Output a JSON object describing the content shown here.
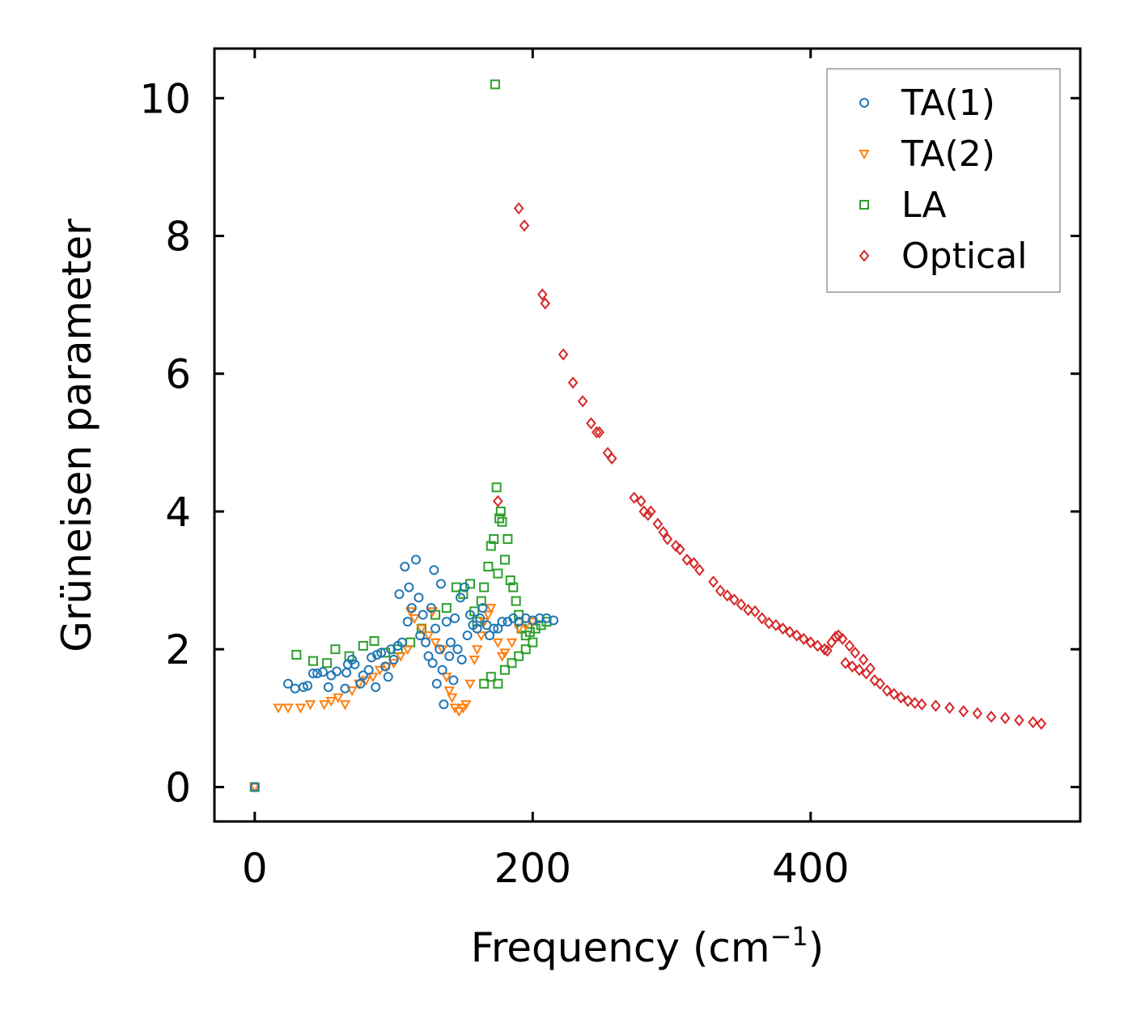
{
  "chart_data": {
    "type": "scatter",
    "xlabel": "Frequency (cm",
    "xlabel_sup": "−1",
    "xlabel_end": ")",
    "ylabel": "Grüneisen parameter",
    "xlim": [
      -29,
      594
    ],
    "ylim": [
      -0.5,
      10.72
    ],
    "xticks": [
      0,
      200,
      400
    ],
    "yticks": [
      0,
      2,
      4,
      6,
      8,
      10
    ],
    "legend_position": "top-right",
    "series": [
      {
        "name": "TA(1)",
        "marker": "circle",
        "color": "#1f77b4",
        "points": [
          [
            0,
            0
          ],
          [
            24,
            1.5
          ],
          [
            29,
            1.43
          ],
          [
            35,
            1.45
          ],
          [
            38,
            1.47
          ],
          [
            42,
            1.65
          ],
          [
            45,
            1.65
          ],
          [
            49,
            1.67
          ],
          [
            53,
            1.45
          ],
          [
            55,
            1.62
          ],
          [
            59,
            1.68
          ],
          [
            65,
            1.43
          ],
          [
            66,
            1.66
          ],
          [
            67,
            1.78
          ],
          [
            70,
            1.85
          ],
          [
            72,
            1.78
          ],
          [
            76,
            1.5
          ],
          [
            78,
            1.62
          ],
          [
            82,
            1.7
          ],
          [
            84,
            1.88
          ],
          [
            87,
            1.45
          ],
          [
            88,
            1.92
          ],
          [
            91,
            1.95
          ],
          [
            94,
            1.75
          ],
          [
            96,
            1.6
          ],
          [
            98,
            2.0
          ],
          [
            100,
            1.85
          ],
          [
            103,
            2.05
          ],
          [
            104,
            2.8
          ],
          [
            106,
            2.1
          ],
          [
            108,
            3.2
          ],
          [
            110,
            2.4
          ],
          [
            111,
            2.9
          ],
          [
            113,
            2.6
          ],
          [
            116,
            3.3
          ],
          [
            118,
            2.75
          ],
          [
            119,
            2.2
          ],
          [
            121,
            2.5
          ],
          [
            123,
            2.1
          ],
          [
            125,
            1.9
          ],
          [
            127,
            2.6
          ],
          [
            128,
            1.8
          ],
          [
            129,
            3.15
          ],
          [
            130,
            2.3
          ],
          [
            131,
            1.5
          ],
          [
            133,
            2.0
          ],
          [
            134,
            2.95
          ],
          [
            135,
            1.7
          ],
          [
            136,
            1.2
          ],
          [
            138,
            2.4
          ],
          [
            140,
            1.9
          ],
          [
            141,
            2.1
          ],
          [
            143,
            1.55
          ],
          [
            144,
            2.45
          ],
          [
            146,
            2.0
          ],
          [
            148,
            2.75
          ],
          [
            149,
            1.85
          ],
          [
            151,
            2.9
          ],
          [
            153,
            2.2
          ],
          [
            155,
            2.5
          ],
          [
            157,
            2.35
          ],
          [
            160,
            2.3
          ],
          [
            162,
            2.45
          ],
          [
            164,
            2.6
          ],
          [
            167,
            2.35
          ],
          [
            169,
            2.2
          ],
          [
            172,
            2.3
          ],
          [
            175,
            2.3
          ],
          [
            178,
            2.4
          ],
          [
            182,
            2.4
          ],
          [
            186,
            2.45
          ],
          [
            190,
            2.4
          ],
          [
            195,
            2.45
          ],
          [
            200,
            2.42
          ],
          [
            205,
            2.45
          ],
          [
            210,
            2.45
          ],
          [
            215,
            2.42
          ]
        ]
      },
      {
        "name": "TA(2)",
        "marker": "triangle-down",
        "color": "#ff7f0e",
        "points": [
          [
            0,
            0
          ],
          [
            17,
            1.15
          ],
          [
            24,
            1.15
          ],
          [
            33,
            1.15
          ],
          [
            40,
            1.2
          ],
          [
            50,
            1.2
          ],
          [
            55,
            1.25
          ],
          [
            60,
            1.3
          ],
          [
            65,
            1.2
          ],
          [
            70,
            1.4
          ],
          [
            75,
            1.5
          ],
          [
            80,
            1.55
          ],
          [
            85,
            1.6
          ],
          [
            90,
            1.7
          ],
          [
            95,
            1.75
          ],
          [
            100,
            1.8
          ],
          [
            105,
            1.9
          ],
          [
            110,
            2.0
          ],
          [
            112,
            2.55
          ],
          [
            115,
            2.45
          ],
          [
            120,
            2.3
          ],
          [
            125,
            2.2
          ],
          [
            128,
            2.55
          ],
          [
            130,
            2.1
          ],
          [
            135,
            2.0
          ],
          [
            138,
            1.6
          ],
          [
            140,
            1.4
          ],
          [
            142,
            1.3
          ],
          [
            144,
            1.15
          ],
          [
            147,
            1.1
          ],
          [
            150,
            1.15
          ],
          [
            152,
            1.2
          ],
          [
            155,
            1.5
          ],
          [
            158,
            1.85
          ],
          [
            160,
            2.0
          ],
          [
            163,
            2.2
          ],
          [
            165,
            2.4
          ],
          [
            168,
            2.5
          ],
          [
            170,
            2.6
          ],
          [
            175,
            2.1
          ],
          [
            178,
            1.9
          ],
          [
            180,
            1.95
          ],
          [
            185,
            2.1
          ],
          [
            190,
            2.3
          ],
          [
            195,
            2.35
          ],
          [
            200,
            2.4
          ]
        ]
      },
      {
        "name": "LA",
        "marker": "square",
        "color": "#2ca02c",
        "points": [
          [
            0,
            0
          ],
          [
            30,
            1.92
          ],
          [
            42,
            1.83
          ],
          [
            52,
            1.8
          ],
          [
            58,
            2.0
          ],
          [
            68,
            1.9
          ],
          [
            78,
            2.05
          ],
          [
            86,
            2.12
          ],
          [
            94,
            1.95
          ],
          [
            103,
            2.0
          ],
          [
            112,
            2.1
          ],
          [
            120,
            2.3
          ],
          [
            130,
            2.5
          ],
          [
            138,
            2.6
          ],
          [
            145,
            2.9
          ],
          [
            150,
            2.8
          ],
          [
            155,
            2.95
          ],
          [
            158,
            2.55
          ],
          [
            160,
            2.4
          ],
          [
            163,
            2.7
          ],
          [
            165,
            2.9
          ],
          [
            168,
            3.2
          ],
          [
            170,
            3.5
          ],
          [
            172,
            3.6
          ],
          [
            173,
            10.2
          ],
          [
            174,
            4.35
          ],
          [
            175,
            3.1
          ],
          [
            176,
            3.9
          ],
          [
            177,
            4.0
          ],
          [
            178,
            3.85
          ],
          [
            180,
            3.3
          ],
          [
            182,
            3.6
          ],
          [
            184,
            3.0
          ],
          [
            186,
            2.9
          ],
          [
            188,
            2.7
          ],
          [
            190,
            2.5
          ],
          [
            192,
            2.3
          ],
          [
            195,
            2.2
          ],
          [
            198,
            2.25
          ],
          [
            202,
            2.3
          ],
          [
            206,
            2.35
          ],
          [
            210,
            2.4
          ],
          [
            165,
            1.5
          ],
          [
            170,
            1.6
          ],
          [
            175,
            1.5
          ],
          [
            180,
            1.7
          ],
          [
            185,
            1.8
          ],
          [
            190,
            1.9
          ],
          [
            195,
            2.0
          ],
          [
            200,
            2.1
          ]
        ]
      },
      {
        "name": "Optical",
        "marker": "diamond",
        "color": "#d62728",
        "points": [
          [
            175,
            4.15
          ],
          [
            190,
            8.4
          ],
          [
            194,
            8.15
          ],
          [
            207,
            7.15
          ],
          [
            209,
            7.02
          ],
          [
            222,
            6.28
          ],
          [
            229,
            5.87
          ],
          [
            236,
            5.6
          ],
          [
            242,
            5.28
          ],
          [
            246,
            5.15
          ],
          [
            248,
            5.15
          ],
          [
            254,
            4.85
          ],
          [
            257,
            4.77
          ],
          [
            273,
            4.2
          ],
          [
            278,
            4.15
          ],
          [
            280,
            4.0
          ],
          [
            283,
            3.95
          ],
          [
            285,
            4.0
          ],
          [
            290,
            3.82
          ],
          [
            294,
            3.7
          ],
          [
            297,
            3.6
          ],
          [
            303,
            3.5
          ],
          [
            306,
            3.45
          ],
          [
            311,
            3.3
          ],
          [
            316,
            3.25
          ],
          [
            320,
            3.15
          ],
          [
            330,
            2.98
          ],
          [
            335,
            2.85
          ],
          [
            340,
            2.78
          ],
          [
            345,
            2.72
          ],
          [
            350,
            2.65
          ],
          [
            355,
            2.57
          ],
          [
            360,
            2.55
          ],
          [
            365,
            2.45
          ],
          [
            370,
            2.38
          ],
          [
            375,
            2.35
          ],
          [
            380,
            2.3
          ],
          [
            385,
            2.25
          ],
          [
            390,
            2.2
          ],
          [
            395,
            2.15
          ],
          [
            400,
            2.1
          ],
          [
            405,
            2.05
          ],
          [
            410,
            2.0
          ],
          [
            412,
            1.98
          ],
          [
            415,
            2.1
          ],
          [
            418,
            2.18
          ],
          [
            420,
            2.2
          ],
          [
            423,
            2.15
          ],
          [
            425,
            1.8
          ],
          [
            428,
            2.05
          ],
          [
            430,
            1.75
          ],
          [
            432,
            1.95
          ],
          [
            435,
            1.7
          ],
          [
            438,
            1.85
          ],
          [
            440,
            1.65
          ],
          [
            443,
            1.72
          ],
          [
            446,
            1.55
          ],
          [
            450,
            1.5
          ],
          [
            455,
            1.4
          ],
          [
            460,
            1.35
          ],
          [
            465,
            1.3
          ],
          [
            470,
            1.25
          ],
          [
            475,
            1.22
          ],
          [
            480,
            1.2
          ],
          [
            490,
            1.18
          ],
          [
            500,
            1.15
          ],
          [
            510,
            1.1
          ],
          [
            520,
            1.07
          ],
          [
            530,
            1.02
          ],
          [
            540,
            1.0
          ],
          [
            550,
            0.97
          ],
          [
            560,
            0.94
          ],
          [
            566,
            0.92
          ]
        ]
      }
    ]
  }
}
